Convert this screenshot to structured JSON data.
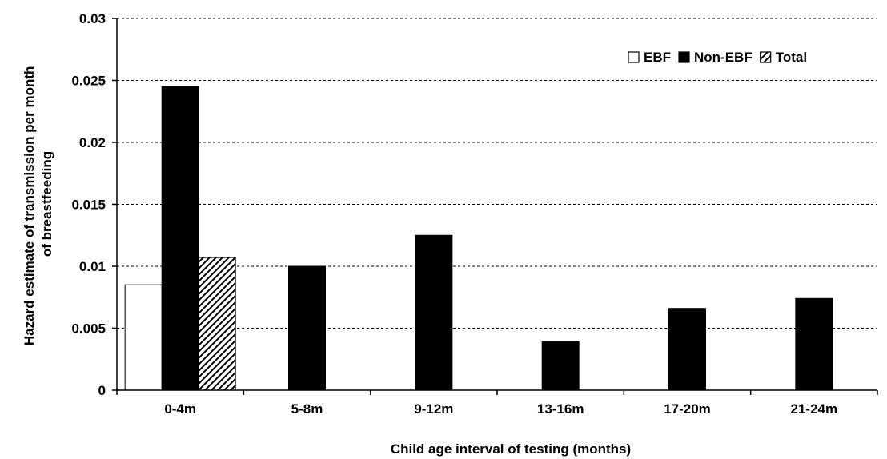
{
  "chart_data": {
    "type": "bar",
    "title": "",
    "xlabel": "Child age interval of testing (months)",
    "ylabel_lines": [
      "Hazard estimate of transmission per month",
      "of breastfeeding"
    ],
    "ylim": [
      0,
      0.03
    ],
    "yticks": [
      {
        "value": 0,
        "label": "0"
      },
      {
        "value": 0.005,
        "label": "0.005"
      },
      {
        "value": 0.01,
        "label": "0.01"
      },
      {
        "value": 0.015,
        "label": "0.015"
      },
      {
        "value": 0.02,
        "label": "0.02"
      },
      {
        "value": 0.025,
        "label": "0.025"
      },
      {
        "value": 0.03,
        "label": "0.03"
      }
    ],
    "grid": true,
    "legend_position": "top-right",
    "categories": [
      "0-4m",
      "5-8m",
      "9-12m",
      "13-16m",
      "17-20m",
      "21-24m"
    ],
    "series": [
      {
        "name": "EBF",
        "fill": "#ffffff",
        "pattern": "none",
        "values": [
          0.0085,
          null,
          null,
          null,
          null,
          null
        ]
      },
      {
        "name": "Non-EBF",
        "fill": "#000000",
        "pattern": "none",
        "values": [
          0.0245,
          0.01,
          0.0125,
          0.0039,
          0.0066,
          0.0074
        ]
      },
      {
        "name": "Total",
        "fill": "#ffffff",
        "pattern": "diagonal-hatch",
        "values": [
          0.0107,
          null,
          null,
          null,
          null,
          null
        ]
      }
    ]
  }
}
